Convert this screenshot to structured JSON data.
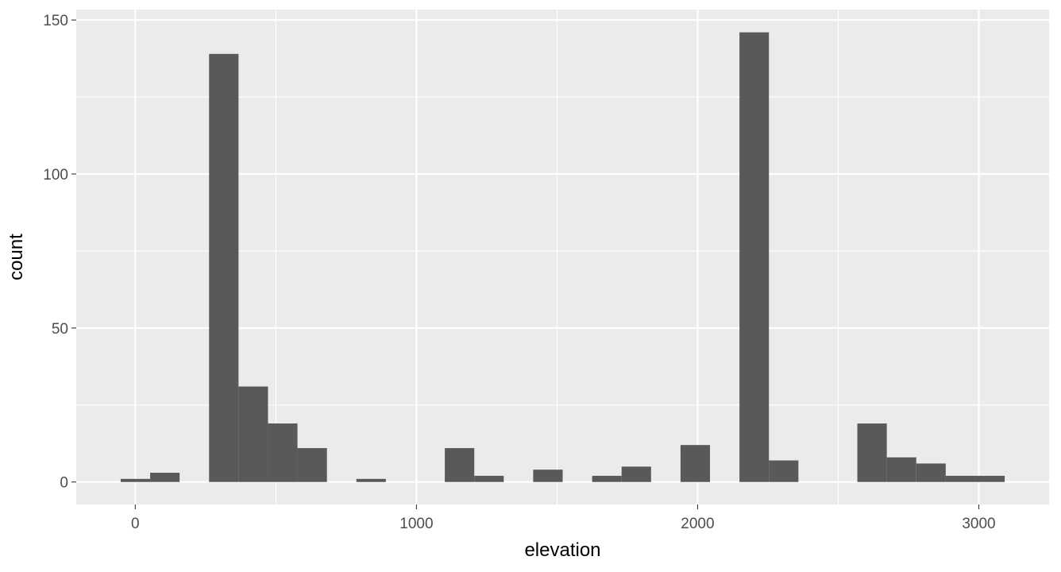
{
  "chart_data": {
    "type": "bar",
    "xlabel": "elevation",
    "ylabel": "count",
    "xlim": [
      -210,
      3250
    ],
    "ylim": [
      -7.3,
      153.4
    ],
    "x_ticks": [
      0,
      1000,
      2000,
      3000
    ],
    "x_minor_ticks": [
      500,
      1500,
      2500
    ],
    "y_ticks": [
      0,
      50,
      100,
      150
    ],
    "y_minor_ticks": [
      25,
      75,
      125
    ],
    "bin_width": 104.8,
    "bins": [
      {
        "x_start": -52,
        "count": 1
      },
      {
        "x_start": 52.8,
        "count": 3
      },
      {
        "x_start": 262.4,
        "count": 139
      },
      {
        "x_start": 367.2,
        "count": 31
      },
      {
        "x_start": 472,
        "count": 19
      },
      {
        "x_start": 576.8,
        "count": 11
      },
      {
        "x_start": 786.4,
        "count": 1
      },
      {
        "x_start": 1100.8,
        "count": 11
      },
      {
        "x_start": 1205.6,
        "count": 2
      },
      {
        "x_start": 1415.2,
        "count": 4
      },
      {
        "x_start": 1624.8,
        "count": 2
      },
      {
        "x_start": 1729.6,
        "count": 5
      },
      {
        "x_start": 1939.2,
        "count": 12
      },
      {
        "x_start": 2148.8,
        "count": 146
      },
      {
        "x_start": 2253.6,
        "count": 7
      },
      {
        "x_start": 2568,
        "count": 19
      },
      {
        "x_start": 2672.8,
        "count": 8
      },
      {
        "x_start": 2777.6,
        "count": 6
      },
      {
        "x_start": 2882.4,
        "count": 2
      },
      {
        "x_start": 2987.2,
        "count": 2
      }
    ],
    "colors": {
      "panel": "#ebebeb",
      "grid": "#ffffff",
      "bar": "#595959",
      "tick": "#333333"
    },
    "grid": true,
    "legend": "none"
  }
}
